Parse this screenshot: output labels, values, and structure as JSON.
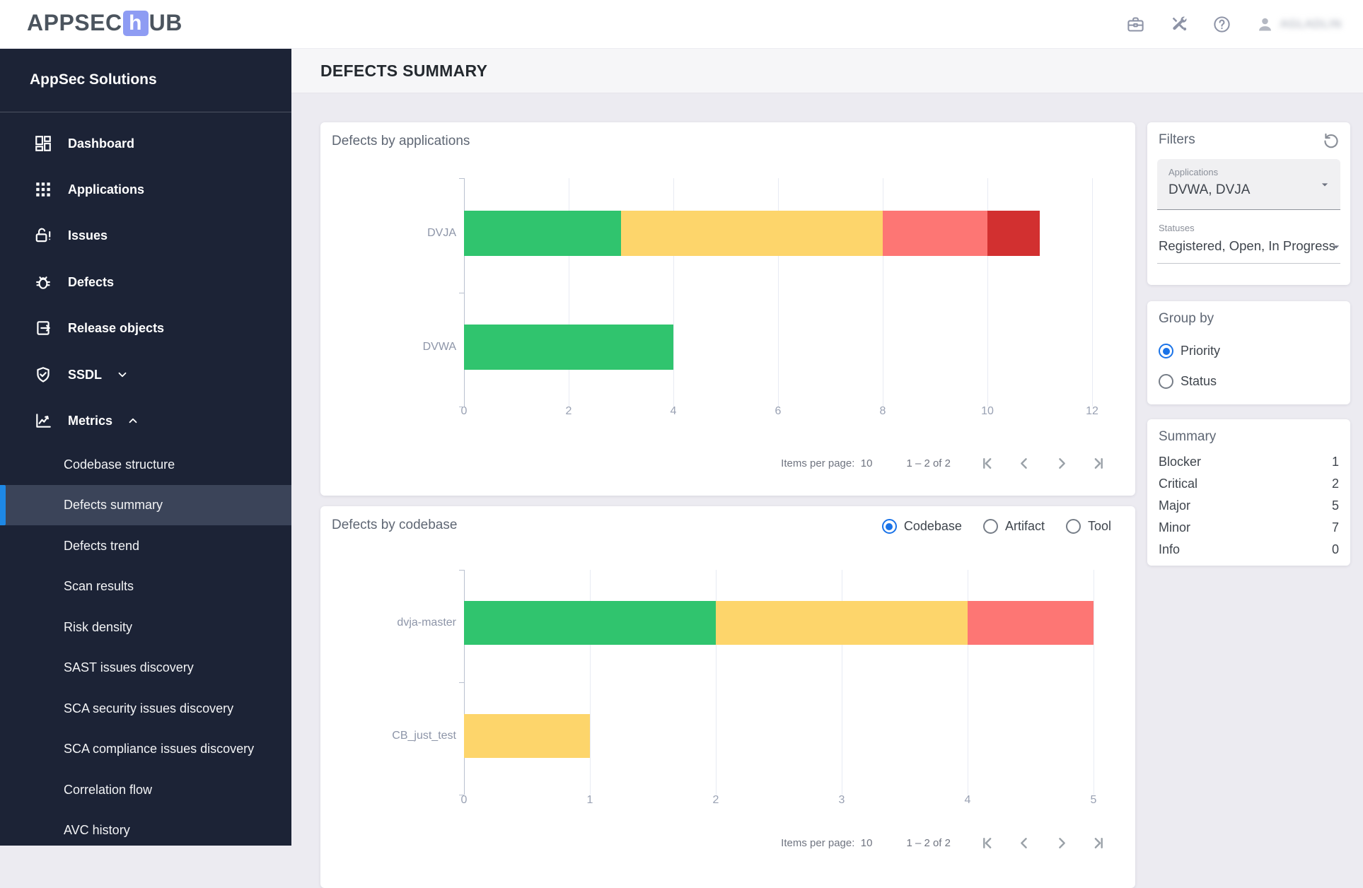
{
  "topbar": {
    "logo_prefix": "APPSEC",
    "logo_h": "h",
    "logo_suffix": "UB",
    "user_name": "AGLADLIN",
    "icons": [
      "briefcase-icon",
      "tools-icon",
      "help-icon",
      "user-icon"
    ]
  },
  "sidebar": {
    "title": "AppSec Solutions",
    "items": [
      {
        "label": "Dashboard",
        "icon": "dashboard-icon"
      },
      {
        "label": "Applications",
        "icon": "apps-grid-icon"
      },
      {
        "label": "Issues",
        "icon": "lock-alert-icon"
      },
      {
        "label": "Defects",
        "icon": "bug-icon"
      },
      {
        "label": "Release objects",
        "icon": "exit-door-icon"
      },
      {
        "label": "SSDL",
        "icon": "shield-check-icon",
        "chevron": "down"
      },
      {
        "label": "Metrics",
        "icon": "metrics-chart-icon",
        "chevron": "up"
      }
    ],
    "subitems": [
      {
        "label": "Codebase structure"
      },
      {
        "label": "Defects summary",
        "selected": true
      },
      {
        "label": "Defects trend"
      },
      {
        "label": "Scan results"
      },
      {
        "label": "Risk density"
      },
      {
        "label": "SAST issues discovery"
      },
      {
        "label": "SCA security issues discovery"
      },
      {
        "label": "SCA compliance issues discovery"
      },
      {
        "label": "Correlation flow"
      },
      {
        "label": "AVC history"
      }
    ]
  },
  "header": {
    "title": "DEFECTS SUMMARY"
  },
  "chart_data": [
    {
      "type": "bar",
      "orientation": "horizontal",
      "stacked": true,
      "title": "Defects by applications",
      "categories": [
        "DVJA",
        "DVWA"
      ],
      "series": [
        {
          "name": "Minor",
          "color": "#30c46e",
          "values": [
            3,
            4
          ]
        },
        {
          "name": "Major",
          "color": "#fdd56b",
          "values": [
            5,
            0
          ]
        },
        {
          "name": "Critical",
          "color": "#fd7674",
          "values": [
            2,
            0
          ]
        },
        {
          "name": "Blocker",
          "color": "#d23030",
          "values": [
            1,
            0
          ]
        }
      ],
      "xlim": [
        0,
        12
      ],
      "xticks": [
        0,
        2,
        4,
        6,
        8,
        10,
        12
      ],
      "grid": true,
      "legend": false
    },
    {
      "type": "bar",
      "orientation": "horizontal",
      "stacked": true,
      "title": "Defects by codebase",
      "categories": [
        "dvja-master",
        "CB_just_test"
      ],
      "series": [
        {
          "name": "Minor",
          "color": "#30c46e",
          "values": [
            2,
            0
          ]
        },
        {
          "name": "Major",
          "color": "#fdd56b",
          "values": [
            2,
            1
          ]
        },
        {
          "name": "Critical",
          "color": "#fd7674",
          "values": [
            1,
            0
          ]
        }
      ],
      "xlim": [
        0,
        5
      ],
      "xticks": [
        0,
        1,
        2,
        3,
        4,
        5
      ],
      "grid": true,
      "legend": false
    }
  ],
  "pagination": {
    "items_per_page_label": "Items per page:",
    "items_per_page_value": "10",
    "range_label": "1 – 2 of 2"
  },
  "chart2_controls": {
    "options": [
      "Codebase",
      "Artifact",
      "Tool"
    ],
    "selected": "Codebase"
  },
  "filters": {
    "title": "Filters",
    "applications_label": "Applications",
    "applications_value": "DVWA, DVJA",
    "statuses_label": "Statuses",
    "statuses_value": "Registered, Open, In Progress",
    "reset_icon": "reset-icon"
  },
  "group_by": {
    "title": "Group by",
    "options": [
      "Priority",
      "Status"
    ],
    "selected": "Priority"
  },
  "summary": {
    "title": "Summary",
    "rows": [
      {
        "label": "Blocker",
        "value": 1
      },
      {
        "label": "Critical",
        "value": 2
      },
      {
        "label": "Major",
        "value": 5
      },
      {
        "label": "Minor",
        "value": 7
      },
      {
        "label": "Info",
        "value": 0
      }
    ]
  },
  "accent_colors": {
    "radio_selected": "#1a73e8",
    "sidebar_selected_bar": "#1e88e5",
    "sidebar_bg": "#1c2336"
  }
}
